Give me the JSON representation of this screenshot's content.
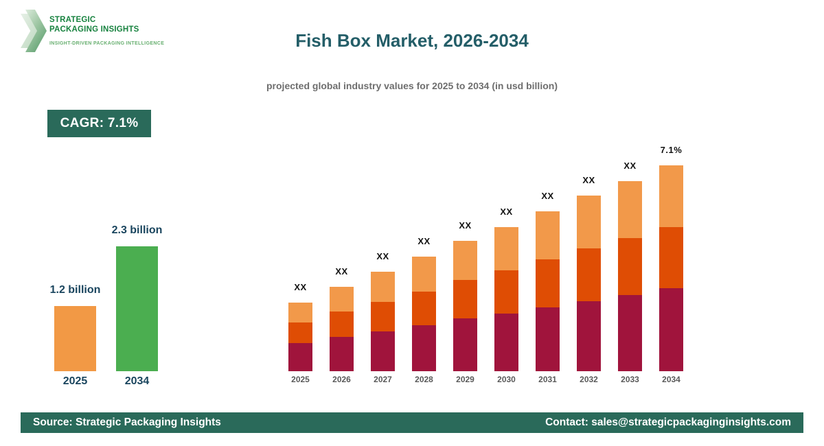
{
  "theme": {
    "background": "#ffffff",
    "accent_green": "#2a6a5a",
    "title_teal": "#245e68",
    "label_navy": "#1a455e",
    "subtitle_gray": "#6e6e6e",
    "logo_green": "#17823f",
    "logo_tagline_green": "#68af70"
  },
  "logo": {
    "line1": "STRATEGIC",
    "line2": "PACKAGING INSIGHTS",
    "tagline": "INSIGHT-DRIVEN PACKAGING INTELLIGENCE"
  },
  "header": {
    "title": "Fish Box Market, 2026-2034",
    "subtitle": "projected global industry values for 2025 to 2034 (in usd billion)"
  },
  "cagr_badge": {
    "label": "CAGR: 7.1%"
  },
  "footer": {
    "source": "Source: Strategic Packaging Insights",
    "contact": "Contact: sales@strategicpackaginginsights.com"
  },
  "chart_data": [
    {
      "type": "bar",
      "id": "market-size-summary",
      "title": "",
      "categories": [
        "2025",
        "2034"
      ],
      "values": [
        1.2,
        2.3
      ],
      "unit": "usd billion",
      "value_labels": [
        "1.2 billion",
        "2.3 billion"
      ],
      "bar_colors": [
        "#f29945",
        "#4bae50"
      ],
      "grid": false,
      "legend": false
    },
    {
      "type": "bar",
      "id": "yearly-stacked",
      "stacked": true,
      "title": "",
      "categories": [
        "2025",
        "2026",
        "2027",
        "2028",
        "2029",
        "2030",
        "2031",
        "2032",
        "2033",
        "2034"
      ],
      "series": [
        {
          "name": "bottom-segment",
          "color": "#a0143c",
          "values": [
            13.7,
            16.7,
            19.3,
            22.3,
            25.7,
            28.0,
            31.0,
            34.0,
            37.0,
            40.3
          ]
        },
        {
          "name": "middle-segment",
          "color": "#df4d04",
          "values": [
            10.0,
            12.3,
            14.3,
            16.3,
            18.7,
            21.0,
            23.3,
            25.7,
            27.7,
            29.7
          ]
        },
        {
          "name": "top-segment",
          "color": "#f2994a",
          "values": [
            9.6,
            12.0,
            14.7,
            17.1,
            18.9,
            21.0,
            23.4,
            25.6,
            27.6,
            30.0
          ]
        }
      ],
      "bar_top_labels": [
        "XX",
        "XX",
        "XX",
        "XX",
        "XX",
        "XX",
        "XX",
        "XX",
        "XX",
        "7.1%"
      ],
      "tick_color": "#595959",
      "top_label_color": "#111111",
      "grid": false,
      "legend": false,
      "note": "source masks actual values as XX; series values are relative stack heights scaled so the 2034 total = 100"
    }
  ]
}
